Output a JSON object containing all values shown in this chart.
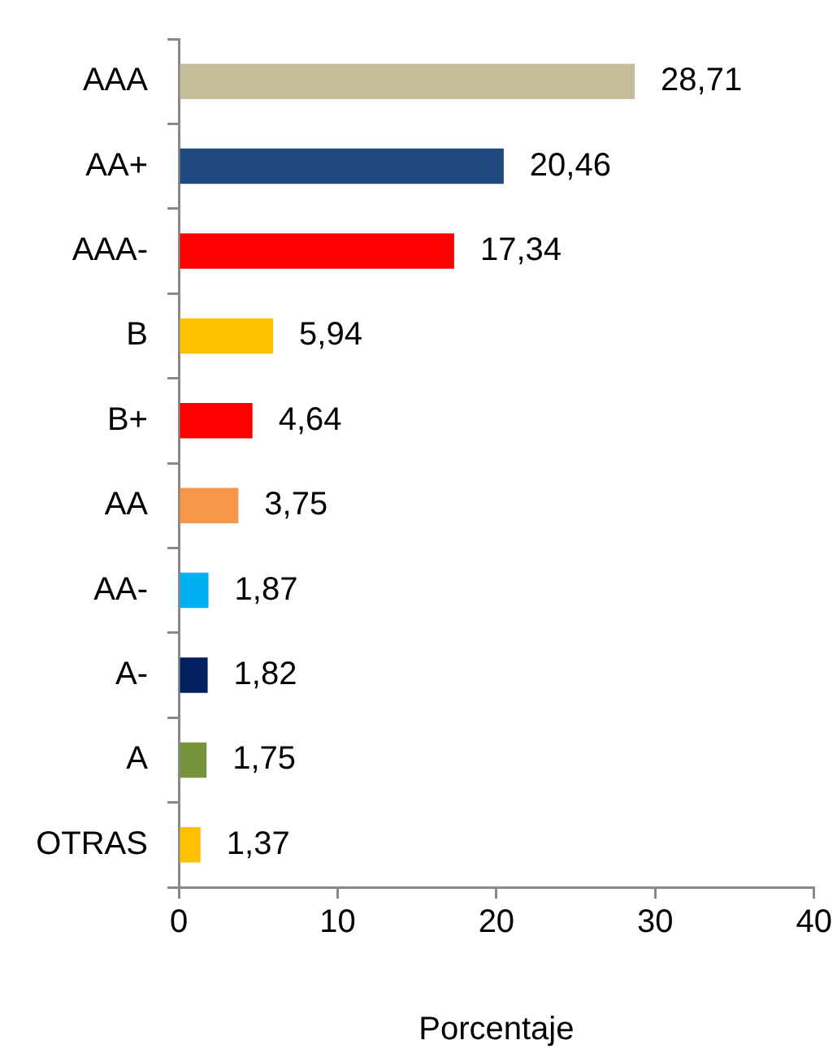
{
  "chart_data": {
    "type": "bar",
    "orientation": "horizontal",
    "categories": [
      "AAA",
      "AA+",
      "AAA-",
      "B",
      "B+",
      "AA",
      "AA-",
      "A-",
      "A",
      "OTRAS"
    ],
    "values": [
      28.71,
      20.46,
      17.34,
      5.94,
      4.64,
      3.75,
      1.87,
      1.82,
      1.75,
      1.37
    ],
    "colors": [
      "#c4bd97",
      "#1f497d",
      "#ff0000",
      "#ffc000",
      "#ff0000",
      "#f79646",
      "#00b0f0",
      "#002060",
      "#77933c",
      "#ffc000"
    ],
    "value_labels": [
      "28,71",
      "20,46",
      "17,34",
      "5,94",
      "4,64",
      "3,75",
      "1,87",
      "1,82",
      "1,75",
      "1,37"
    ],
    "xlabel": "Porcentaje",
    "xlim": [
      0,
      40
    ],
    "xticks": [
      0,
      10,
      20,
      30,
      40
    ]
  }
}
